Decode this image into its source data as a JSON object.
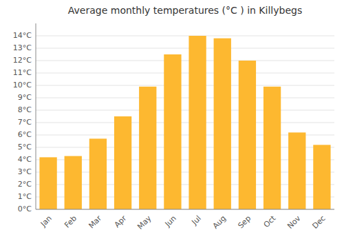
{
  "chart_data": {
    "type": "bar",
    "title": "Average monthly temperatures (°C ) in Killybegs",
    "categories": [
      "Jan",
      "Feb",
      "Mar",
      "Apr",
      "May",
      "Jun",
      "Jul",
      "Aug",
      "Sep",
      "Oct",
      "Nov",
      "Dec"
    ],
    "values": [
      4.2,
      4.3,
      5.7,
      7.5,
      9.9,
      12.5,
      14.0,
      13.8,
      12.0,
      9.9,
      6.2,
      5.2
    ],
    "color": "#FDB830",
    "ylim": [
      0,
      15.0
    ],
    "yticks": [
      {
        "value": 0,
        "label": "0°C"
      },
      {
        "value": 1,
        "label": "1°C"
      },
      {
        "value": 2,
        "label": "2°C"
      },
      {
        "value": 3,
        "label": "3°C"
      },
      {
        "value": 4,
        "label": "4°C"
      },
      {
        "value": 5,
        "label": "5°C"
      },
      {
        "value": 6,
        "label": "6°C"
      },
      {
        "value": 7,
        "label": "7°C"
      },
      {
        "value": 8,
        "label": "8°C"
      },
      {
        "value": 9,
        "label": "9°C"
      },
      {
        "value": 10,
        "label": "10°C"
      },
      {
        "value": 11,
        "label": "11°C"
      },
      {
        "value": 12,
        "label": "12°C"
      },
      {
        "value": 13,
        "label": "13°C"
      },
      {
        "value": 14,
        "label": "14°C"
      }
    ],
    "grid": true
  }
}
